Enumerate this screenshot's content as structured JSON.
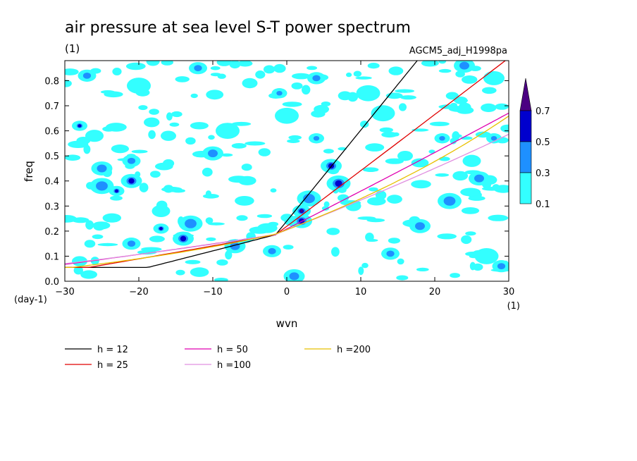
{
  "chart_data": {
    "type": "heatmap",
    "title": "air pressure at sea level S-T power spectrum",
    "unit_label": "(1)",
    "experiment": "AGCM5_adj_H1998pa",
    "xlabel": "wvn",
    "ylabel": "freq",
    "x_unit": "(1)",
    "y_unit": "(day-1)",
    "xlim": [
      -30,
      30
    ],
    "ylim": [
      0,
      0.88
    ],
    "xticks": [
      -30,
      -20,
      -10,
      0,
      10,
      20,
      30
    ],
    "yticks": [
      0.0,
      0.1,
      0.2,
      0.3,
      0.4,
      0.5,
      0.6,
      0.7,
      0.8
    ],
    "color_levels": [
      0.1,
      0.3,
      0.5,
      0.7
    ],
    "level_colors": [
      "#33ffff",
      "#1e90ff",
      "#0000cd",
      "#4b0082"
    ],
    "legend_labels": [
      "0.1",
      "0.3",
      "0.5",
      "0.7"
    ],
    "dispersion_curves": [
      {
        "name": "h = 12",
        "h": 12,
        "color": "#000000"
      },
      {
        "name": "h = 25",
        "h": 25,
        "color": "#e00000"
      },
      {
        "name": "h = 50",
        "h": 50,
        "color": "#e000b0"
      },
      {
        "name": "h =100",
        "h": 100,
        "color": "#e090e0"
      },
      {
        "name": "h =200",
        "h": 200,
        "color": "#e8c000"
      }
    ],
    "blobs": [
      {
        "x": -28,
        "y": 0.62,
        "v": 0.55
      },
      {
        "x": -26,
        "y": 0.58,
        "v": 0.2
      },
      {
        "x": -25,
        "y": 0.45,
        "v": 0.45
      },
      {
        "x": -25,
        "y": 0.38,
        "v": 0.35
      },
      {
        "x": -23,
        "y": 0.36,
        "v": 0.55
      },
      {
        "x": -21,
        "y": 0.48,
        "v": 0.45
      },
      {
        "x": -21,
        "y": 0.4,
        "v": 0.55
      },
      {
        "x": -20,
        "y": 0.78,
        "v": 0.25
      },
      {
        "x": -17,
        "y": 0.21,
        "v": 0.55
      },
      {
        "x": -17,
        "y": 0.28,
        "v": 0.25
      },
      {
        "x": -14,
        "y": 0.17,
        "v": 0.55
      },
      {
        "x": -13,
        "y": 0.23,
        "v": 0.35
      },
      {
        "x": -16,
        "y": 0.58,
        "v": 0.2
      },
      {
        "x": -12,
        "y": 0.85,
        "v": 0.45
      },
      {
        "x": -10,
        "y": 0.51,
        "v": 0.45
      },
      {
        "x": -8,
        "y": 0.6,
        "v": 0.2
      },
      {
        "x": -5,
        "y": 0.79,
        "v": 0.25
      },
      {
        "x": -2,
        "y": 0.12,
        "v": 0.3
      },
      {
        "x": 1,
        "y": 0.02,
        "v": 0.45
      },
      {
        "x": 0,
        "y": 0.66,
        "v": 0.25
      },
      {
        "x": -1,
        "y": 0.75,
        "v": 0.3
      },
      {
        "x": 2,
        "y": 0.28,
        "v": 0.75
      },
      {
        "x": 2,
        "y": 0.24,
        "v": 0.55
      },
      {
        "x": 3,
        "y": 0.33,
        "v": 0.35
      },
      {
        "x": 4,
        "y": 0.57,
        "v": 0.45
      },
      {
        "x": 4,
        "y": 0.81,
        "v": 0.45
      },
      {
        "x": 6,
        "y": 0.46,
        "v": 0.55
      },
      {
        "x": 7,
        "y": 0.39,
        "v": 0.55
      },
      {
        "x": 9,
        "y": 0.3,
        "v": 0.25
      },
      {
        "x": 14,
        "y": 0.11,
        "v": 0.3
      },
      {
        "x": 18,
        "y": 0.22,
        "v": 0.45
      },
      {
        "x": 22,
        "y": 0.32,
        "v": 0.3
      },
      {
        "x": 21,
        "y": 0.57,
        "v": 0.3
      },
      {
        "x": 25,
        "y": 0.48,
        "v": 0.2
      },
      {
        "x": 26,
        "y": 0.41,
        "v": 0.45
      },
      {
        "x": 27,
        "y": 0.1,
        "v": 0.25
      },
      {
        "x": 28,
        "y": 0.57,
        "v": 0.45
      },
      {
        "x": 29,
        "y": 0.06,
        "v": 0.45
      },
      {
        "x": 28,
        "y": 0.81,
        "v": 0.2
      },
      {
        "x": 13,
        "y": 0.67,
        "v": 0.25
      },
      {
        "x": -28,
        "y": 0.08,
        "v": 0.25
      },
      {
        "x": -21,
        "y": 0.15,
        "v": 0.35
      },
      {
        "x": -7,
        "y": 0.14,
        "v": 0.45
      },
      {
        "x": 11,
        "y": 0.75,
        "v": 0.2
      },
      {
        "x": 16,
        "y": 0.5,
        "v": 0.2
      },
      {
        "x": -27,
        "y": 0.82,
        "v": 0.3
      },
      {
        "x": 24,
        "y": 0.86,
        "v": 0.3
      }
    ]
  }
}
